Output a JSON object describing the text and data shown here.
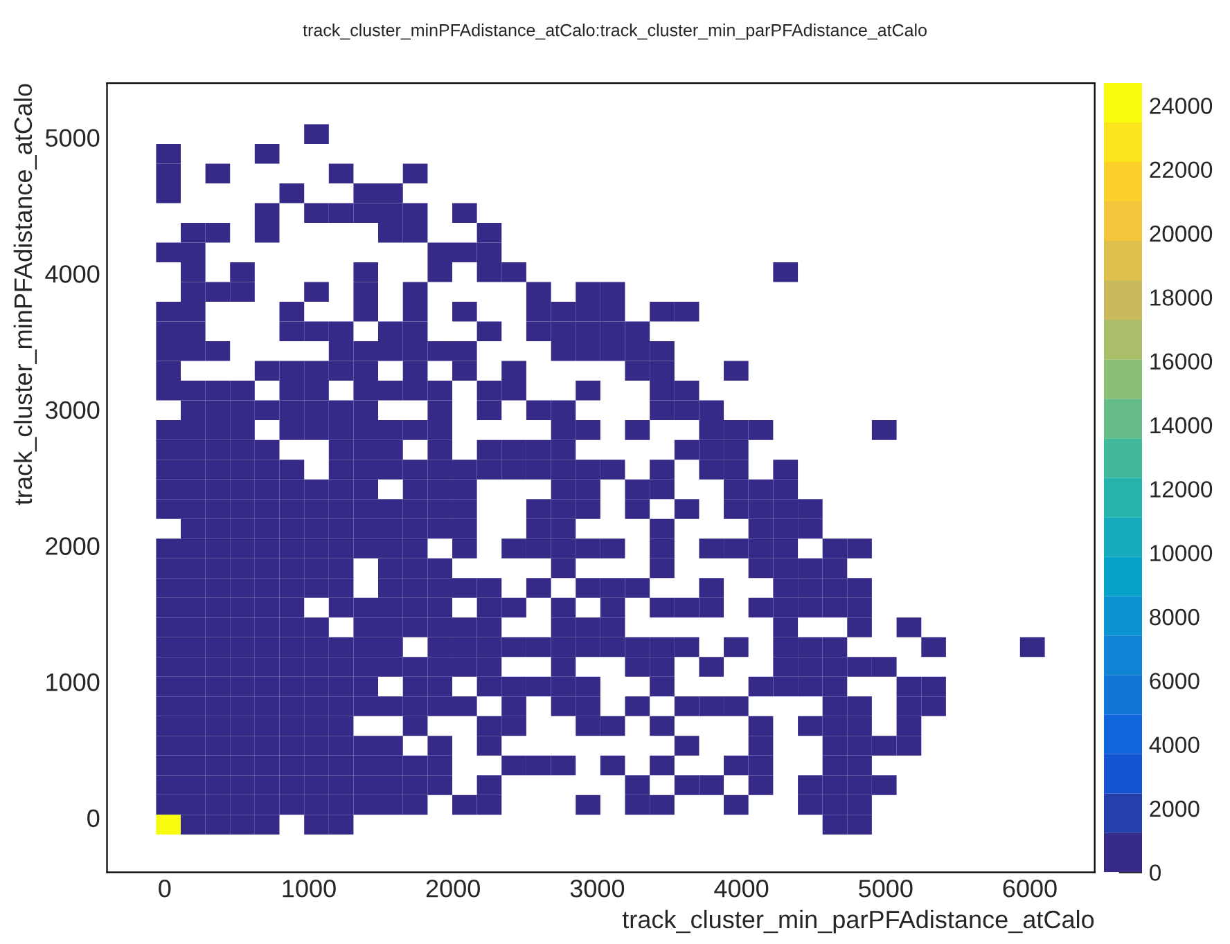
{
  "chart_data": {
    "type": "heatmap",
    "title": "track_cluster_minPFAdistance_atCalo:track_cluster_min_parPFAdistance_atCalo",
    "xlabel": "track_cluster_min_parPFAdistance_atCalo",
    "ylabel": "track_cluster_minPFAdistance_atCalo",
    "x": [
      26,
      197,
      368,
      539,
      710,
      882,
      1053,
      1224,
      1395,
      1566,
      1738,
      1909,
      2080,
      2251,
      2422,
      2594,
      2765,
      2936,
      3107,
      3278,
      3450,
      3621,
      3792,
      3963,
      4134,
      4306,
      4477,
      4648,
      4819,
      4990,
      5162,
      5333,
      5504,
      5675,
      5846,
      6018
    ],
    "y": [
      5025,
      4880,
      4735,
      4590,
      4445,
      4300,
      4155,
      4010,
      3865,
      3720,
      3575,
      3430,
      3285,
      3140,
      2995,
      2850,
      2705,
      2560,
      2415,
      2270,
      2125,
      1980,
      1835,
      1690,
      1545,
      1400,
      1255,
      1110,
      965,
      820,
      675,
      530,
      385,
      240,
      95,
      -50
    ],
    "cells": [
      [
        null,
        null,
        null,
        null,
        null,
        null,
        400,
        null,
        null,
        null,
        null,
        null,
        null,
        null,
        null,
        null,
        null,
        null,
        null,
        null,
        null,
        null,
        null,
        null,
        null,
        null,
        null,
        null,
        null,
        null,
        null,
        null,
        null,
        null,
        null,
        null
      ],
      [
        400,
        null,
        null,
        null,
        400,
        null,
        null,
        null,
        null,
        null,
        null,
        null,
        null,
        null,
        null,
        null,
        null,
        null,
        null,
        null,
        null,
        null,
        null,
        null,
        null,
        null,
        null,
        null,
        null,
        null,
        null,
        null,
        null,
        null,
        null,
        null
      ],
      [
        400,
        null,
        400,
        null,
        null,
        null,
        null,
        400,
        null,
        null,
        400,
        null,
        null,
        null,
        null,
        null,
        null,
        null,
        null,
        null,
        null,
        null,
        null,
        null,
        null,
        null,
        null,
        null,
        null,
        null,
        null,
        null,
        null,
        null,
        null,
        null
      ],
      [
        400,
        null,
        null,
        null,
        null,
        400,
        null,
        null,
        400,
        400,
        null,
        null,
        null,
        null,
        null,
        null,
        null,
        null,
        null,
        null,
        null,
        null,
        null,
        null,
        null,
        null,
        null,
        null,
        null,
        null,
        null,
        null,
        null,
        null,
        null,
        null
      ],
      [
        null,
        null,
        null,
        null,
        400,
        null,
        400,
        400,
        400,
        400,
        400,
        null,
        400,
        null,
        null,
        null,
        null,
        null,
        null,
        null,
        null,
        null,
        null,
        null,
        null,
        null,
        null,
        null,
        null,
        null,
        null,
        null,
        null,
        null,
        null,
        null
      ],
      [
        null,
        400,
        400,
        null,
        400,
        null,
        null,
        null,
        null,
        400,
        400,
        null,
        null,
        400,
        null,
        null,
        null,
        null,
        null,
        null,
        null,
        null,
        null,
        null,
        null,
        null,
        null,
        null,
        null,
        null,
        null,
        null,
        null,
        null,
        null,
        null
      ],
      [
        400,
        400,
        null,
        null,
        null,
        null,
        null,
        null,
        null,
        null,
        null,
        400,
        400,
        400,
        null,
        null,
        null,
        null,
        null,
        null,
        null,
        null,
        null,
        null,
        null,
        null,
        null,
        null,
        null,
        null,
        null,
        null,
        null,
        null,
        null,
        null
      ],
      [
        null,
        400,
        null,
        400,
        null,
        null,
        null,
        null,
        400,
        null,
        null,
        400,
        null,
        400,
        400,
        null,
        null,
        null,
        null,
        null,
        null,
        null,
        null,
        null,
        null,
        400,
        null,
        null,
        null,
        null,
        null,
        null,
        null,
        null,
        null,
        null
      ],
      [
        null,
        400,
        400,
        400,
        null,
        null,
        400,
        null,
        400,
        null,
        400,
        null,
        null,
        null,
        null,
        400,
        null,
        400,
        400,
        null,
        null,
        null,
        null,
        null,
        null,
        null,
        null,
        null,
        null,
        null,
        null,
        null,
        null,
        null,
        null,
        null
      ],
      [
        400,
        400,
        null,
        null,
        null,
        400,
        null,
        null,
        400,
        null,
        400,
        null,
        400,
        null,
        null,
        400,
        400,
        400,
        400,
        null,
        400,
        400,
        null,
        null,
        null,
        null,
        null,
        null,
        null,
        null,
        null,
        null,
        null,
        null,
        null,
        null
      ],
      [
        400,
        400,
        null,
        null,
        null,
        400,
        400,
        400,
        null,
        400,
        400,
        null,
        null,
        400,
        null,
        400,
        400,
        400,
        400,
        400,
        null,
        null,
        null,
        null,
        null,
        null,
        null,
        null,
        null,
        null,
        null,
        null,
        null,
        null,
        null,
        null
      ],
      [
        400,
        400,
        400,
        null,
        null,
        null,
        null,
        400,
        400,
        400,
        400,
        400,
        400,
        null,
        null,
        null,
        400,
        400,
        400,
        400,
        400,
        null,
        null,
        null,
        null,
        null,
        null,
        null,
        null,
        null,
        null,
        null,
        null,
        null,
        null,
        null
      ],
      [
        400,
        null,
        null,
        null,
        400,
        400,
        400,
        400,
        400,
        null,
        400,
        null,
        400,
        null,
        400,
        null,
        null,
        null,
        null,
        400,
        400,
        null,
        null,
        400,
        null,
        null,
        null,
        null,
        null,
        null,
        null,
        null,
        null,
        null,
        null,
        null
      ],
      [
        400,
        400,
        400,
        400,
        null,
        400,
        400,
        null,
        400,
        400,
        400,
        400,
        null,
        400,
        400,
        null,
        null,
        400,
        null,
        null,
        400,
        400,
        null,
        null,
        null,
        null,
        null,
        null,
        null,
        null,
        null,
        null,
        null,
        null,
        null,
        null
      ],
      [
        null,
        400,
        400,
        400,
        400,
        400,
        400,
        400,
        400,
        null,
        null,
        400,
        null,
        400,
        null,
        400,
        400,
        null,
        null,
        null,
        400,
        400,
        400,
        null,
        null,
        null,
        null,
        null,
        null,
        null,
        null,
        null,
        null,
        null,
        null,
        null
      ],
      [
        400,
        400,
        400,
        400,
        null,
        400,
        400,
        400,
        400,
        400,
        400,
        400,
        null,
        null,
        null,
        null,
        400,
        400,
        null,
        400,
        null,
        null,
        400,
        400,
        400,
        null,
        null,
        null,
        null,
        400,
        null,
        null,
        null,
        null,
        null,
        null
      ],
      [
        400,
        400,
        400,
        400,
        400,
        null,
        null,
        400,
        400,
        400,
        null,
        400,
        null,
        400,
        400,
        400,
        400,
        null,
        null,
        null,
        null,
        400,
        400,
        400,
        null,
        null,
        null,
        null,
        null,
        null,
        null,
        null,
        null,
        null,
        null,
        null
      ],
      [
        400,
        400,
        400,
        400,
        400,
        400,
        null,
        400,
        400,
        400,
        400,
        400,
        400,
        400,
        400,
        400,
        400,
        400,
        400,
        null,
        400,
        null,
        400,
        400,
        null,
        400,
        null,
        null,
        null,
        null,
        null,
        null,
        null,
        null,
        null,
        null
      ],
      [
        400,
        400,
        400,
        400,
        400,
        400,
        400,
        400,
        400,
        null,
        400,
        400,
        400,
        null,
        null,
        null,
        400,
        400,
        null,
        400,
        400,
        null,
        null,
        400,
        400,
        400,
        null,
        null,
        null,
        null,
        null,
        null,
        null,
        null,
        null,
        null
      ],
      [
        400,
        400,
        400,
        400,
        400,
        400,
        400,
        400,
        400,
        400,
        400,
        400,
        400,
        null,
        null,
        400,
        400,
        400,
        null,
        400,
        null,
        400,
        null,
        400,
        400,
        400,
        400,
        null,
        null,
        null,
        null,
        null,
        null,
        null,
        null,
        null
      ],
      [
        null,
        400,
        400,
        400,
        400,
        400,
        400,
        400,
        400,
        400,
        400,
        400,
        400,
        null,
        null,
        400,
        400,
        null,
        null,
        null,
        400,
        null,
        null,
        null,
        400,
        400,
        400,
        null,
        null,
        null,
        null,
        null,
        null,
        null,
        null,
        null
      ],
      [
        400,
        400,
        400,
        400,
        400,
        400,
        400,
        400,
        400,
        400,
        400,
        null,
        400,
        null,
        400,
        400,
        400,
        400,
        400,
        null,
        400,
        null,
        400,
        400,
        400,
        400,
        null,
        400,
        400,
        null,
        null,
        null,
        null,
        null,
        null,
        null
      ],
      [
        400,
        400,
        400,
        400,
        400,
        400,
        400,
        400,
        null,
        400,
        400,
        400,
        null,
        null,
        null,
        null,
        400,
        null,
        null,
        null,
        400,
        null,
        null,
        null,
        400,
        400,
        400,
        400,
        null,
        null,
        null,
        null,
        null,
        null,
        null,
        null
      ],
      [
        400,
        400,
        400,
        400,
        400,
        400,
        400,
        400,
        null,
        400,
        400,
        400,
        400,
        400,
        null,
        400,
        null,
        400,
        400,
        400,
        null,
        null,
        400,
        null,
        null,
        400,
        400,
        400,
        400,
        null,
        null,
        null,
        null,
        null,
        null,
        null
      ],
      [
        400,
        400,
        400,
        400,
        400,
        400,
        null,
        400,
        400,
        400,
        400,
        400,
        null,
        400,
        400,
        null,
        400,
        null,
        400,
        null,
        400,
        400,
        400,
        null,
        400,
        400,
        400,
        400,
        400,
        null,
        null,
        null,
        null,
        null,
        null,
        null
      ],
      [
        400,
        400,
        400,
        400,
        400,
        400,
        400,
        null,
        400,
        400,
        400,
        400,
        400,
        400,
        null,
        null,
        400,
        400,
        400,
        null,
        null,
        null,
        null,
        null,
        null,
        400,
        null,
        null,
        400,
        null,
        400,
        null,
        null,
        null,
        null,
        null
      ],
      [
        400,
        400,
        400,
        400,
        400,
        400,
        400,
        400,
        400,
        400,
        null,
        400,
        400,
        400,
        400,
        400,
        400,
        400,
        400,
        400,
        400,
        400,
        null,
        400,
        null,
        400,
        400,
        400,
        null,
        null,
        null,
        400,
        null,
        null,
        null,
        400
      ],
      [
        400,
        400,
        400,
        400,
        400,
        400,
        400,
        400,
        400,
        400,
        400,
        400,
        400,
        400,
        null,
        null,
        400,
        null,
        null,
        400,
        400,
        null,
        400,
        null,
        null,
        400,
        400,
        400,
        400,
        400,
        null,
        null,
        null,
        null,
        null,
        null
      ],
      [
        400,
        400,
        400,
        400,
        400,
        400,
        400,
        400,
        400,
        null,
        400,
        400,
        null,
        400,
        400,
        400,
        400,
        400,
        null,
        null,
        400,
        null,
        null,
        null,
        400,
        400,
        400,
        400,
        null,
        null,
        400,
        400,
        null,
        null,
        null,
        null
      ],
      [
        400,
        400,
        400,
        400,
        400,
        400,
        400,
        400,
        400,
        400,
        400,
        400,
        400,
        null,
        400,
        null,
        400,
        400,
        null,
        400,
        null,
        400,
        400,
        400,
        null,
        null,
        null,
        400,
        400,
        null,
        400,
        400,
        null,
        null,
        null,
        null
      ],
      [
        400,
        400,
        400,
        400,
        400,
        400,
        400,
        400,
        null,
        null,
        400,
        null,
        null,
        400,
        400,
        null,
        null,
        400,
        400,
        null,
        400,
        null,
        null,
        null,
        400,
        null,
        400,
        400,
        400,
        null,
        400,
        null,
        null,
        null,
        null,
        null
      ],
      [
        400,
        400,
        400,
        400,
        400,
        400,
        400,
        400,
        400,
        400,
        null,
        400,
        null,
        400,
        null,
        null,
        null,
        null,
        null,
        null,
        null,
        400,
        null,
        null,
        400,
        null,
        null,
        400,
        400,
        400,
        400,
        null,
        null,
        null,
        null,
        null
      ],
      [
        400,
        400,
        400,
        400,
        400,
        400,
        400,
        400,
        400,
        400,
        400,
        400,
        null,
        null,
        400,
        400,
        400,
        null,
        400,
        null,
        400,
        null,
        null,
        400,
        400,
        null,
        null,
        400,
        400,
        null,
        null,
        null,
        null,
        null,
        null,
        null
      ],
      [
        400,
        400,
        400,
        400,
        400,
        400,
        400,
        400,
        400,
        400,
        400,
        400,
        null,
        400,
        null,
        null,
        null,
        null,
        null,
        400,
        null,
        400,
        400,
        null,
        400,
        null,
        400,
        400,
        400,
        400,
        null,
        null,
        null,
        null,
        null,
        null
      ],
      [
        400,
        400,
        400,
        400,
        400,
        400,
        400,
        400,
        400,
        400,
        400,
        null,
        400,
        400,
        null,
        null,
        null,
        400,
        null,
        400,
        400,
        null,
        null,
        400,
        null,
        null,
        400,
        400,
        400,
        null,
        null,
        null,
        null,
        null,
        null,
        null
      ],
      [
        24500,
        400,
        400,
        400,
        400,
        null,
        400,
        400,
        null,
        null,
        null,
        null,
        null,
        null,
        null,
        null,
        null,
        null,
        null,
        null,
        null,
        null,
        null,
        null,
        null,
        null,
        null,
        400,
        400,
        null,
        null,
        null,
        null,
        null,
        null,
        null
      ]
    ],
    "clim": [
      0,
      24700
    ],
    "cticks": [
      0,
      2000,
      4000,
      6000,
      8000,
      10000,
      12000,
      14000,
      16000,
      18000,
      20000,
      22000,
      24000
    ],
    "xlim": [
      -400,
      6450
    ],
    "xticks": [
      0,
      1000,
      2000,
      3000,
      4000,
      5000,
      6000
    ],
    "ylim": [
      -400,
      5400
    ],
    "yticks": [
      0,
      1000,
      2000,
      3000,
      4000,
      5000
    ],
    "grid": false
  }
}
